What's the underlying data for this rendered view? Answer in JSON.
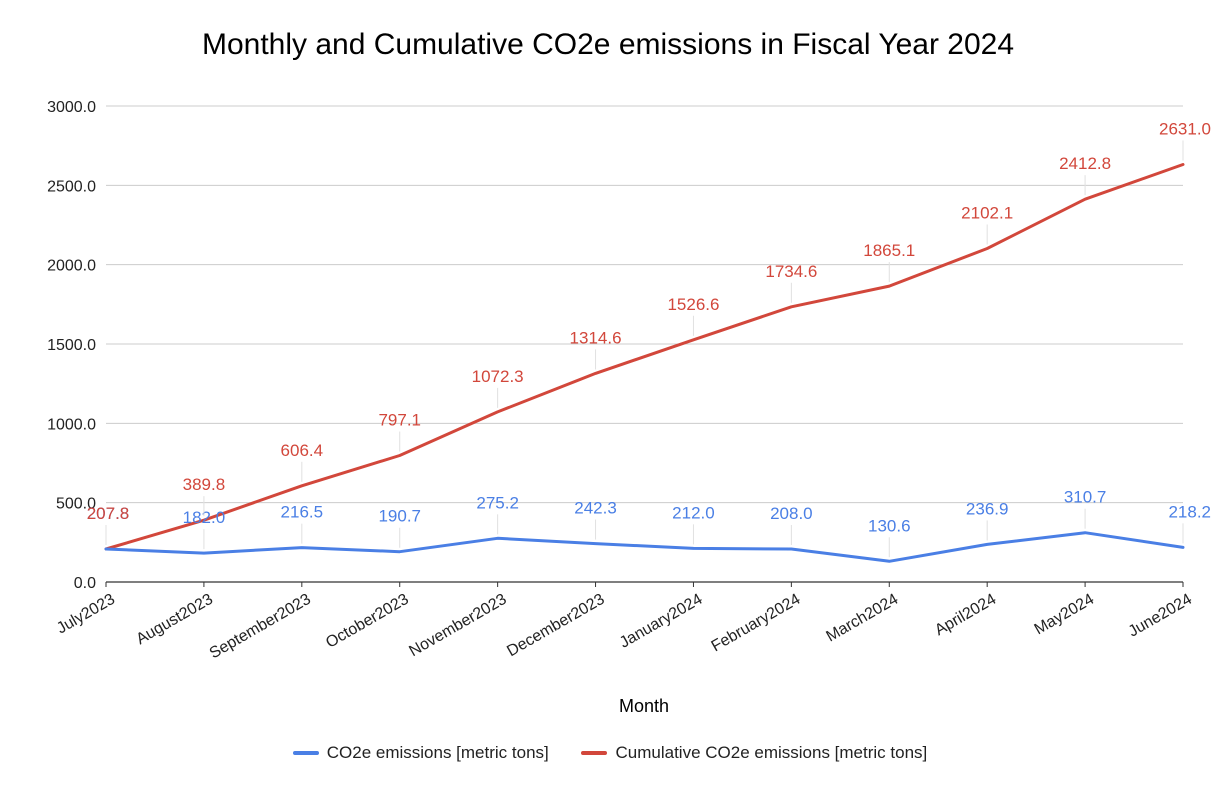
{
  "chart_data": {
    "type": "line",
    "title": "Monthly and Cumulative CO2e emissions in Fiscal Year 2024",
    "xlabel": "Month",
    "ylabel": "",
    "ylim": [
      0,
      3000
    ],
    "yticks": [
      "0.0",
      "500.0",
      "1000.0",
      "1500.0",
      "2000.0",
      "2500.0",
      "3000.0"
    ],
    "grid": true,
    "legend_position": "bottom",
    "categories": [
      "July2023",
      "August2023",
      "September2023",
      "October2023",
      "November2023",
      "December2023",
      "January2024",
      "February2024",
      "March2024",
      "April2024",
      "May2024",
      "June2024"
    ],
    "series": [
      {
        "name": "CO2e emissions [metric tons]",
        "color": "#4a7fe5",
        "values": [
          207.8,
          182.0,
          216.5,
          190.7,
          275.2,
          242.3,
          212.0,
          208.0,
          130.6,
          236.9,
          310.7,
          218.2
        ],
        "labels": [
          "207.8",
          "182.0",
          "216.5",
          "190.7",
          "275.2",
          "242.3",
          "212.0",
          "208.0",
          "130.6",
          "236.9",
          "310.7",
          "218.2"
        ]
      },
      {
        "name": "Cumulative CO2e emissions [metric tons]",
        "color": "#d2473b",
        "values": [
          207.8,
          389.8,
          606.4,
          797.1,
          1072.3,
          1314.6,
          1526.6,
          1734.6,
          1865.1,
          2102.1,
          2412.8,
          2631.0
        ],
        "labels": [
          "207.8",
          "389.8",
          "606.4",
          "797.1",
          "1072.3",
          "1314.6",
          "1526.6",
          "1734.6",
          "1865.1",
          "2102.1",
          "2412.8",
          "2631.0"
        ]
      }
    ]
  }
}
